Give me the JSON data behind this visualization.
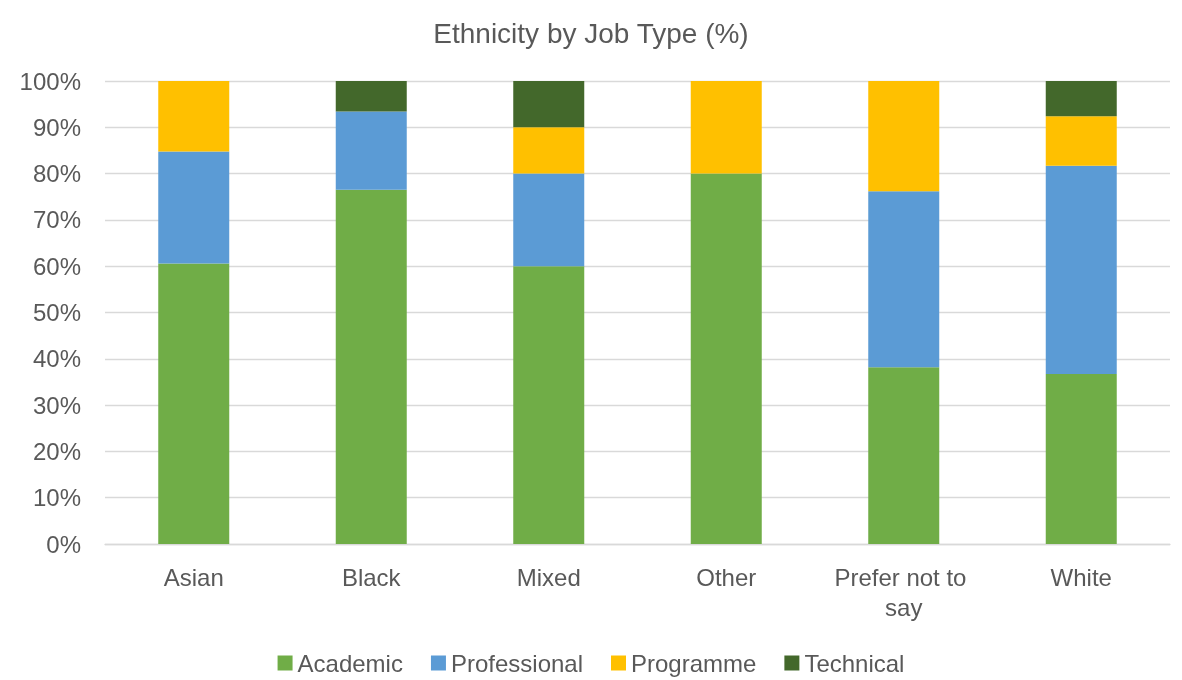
{
  "chart_data": {
    "type": "bar",
    "title": "Ethnicity by Job Type (%)",
    "stacked": true,
    "categories": [
      "Asian",
      "Black",
      "Mixed",
      "Other",
      "Prefer not to say",
      "White"
    ],
    "series": [
      {
        "name": "Academic",
        "color": "#70ad47",
        "values": [
          60.6,
          76.5,
          60,
          80,
          38.2,
          36.7
        ]
      },
      {
        "name": "Professional",
        "color": "#5b9bd5",
        "values": [
          24.2,
          16.9,
          20,
          0,
          38,
          45
        ]
      },
      {
        "name": "Programme",
        "color": "#ffc000",
        "values": [
          15.2,
          0,
          10,
          20,
          23.8,
          10.7
        ]
      },
      {
        "name": "Technical",
        "color": "#43682b",
        "values": [
          0,
          6.6,
          10,
          0,
          0,
          7.6
        ]
      }
    ],
    "ylim": [
      0,
      100
    ],
    "yticks": [
      {
        "value": 0,
        "label": "0%"
      },
      {
        "value": 10,
        "label": "10%"
      },
      {
        "value": 20,
        "label": "20%"
      },
      {
        "value": 30,
        "label": "30%"
      },
      {
        "value": 40,
        "label": "40%"
      },
      {
        "value": 50,
        "label": "50%"
      },
      {
        "value": 60,
        "label": "60%"
      },
      {
        "value": 70,
        "label": "70%"
      },
      {
        "value": 80,
        "label": "80%"
      },
      {
        "value": 90,
        "label": "90%"
      },
      {
        "value": 100,
        "label": "100%"
      }
    ],
    "grid": "y",
    "legend": "bottom"
  }
}
